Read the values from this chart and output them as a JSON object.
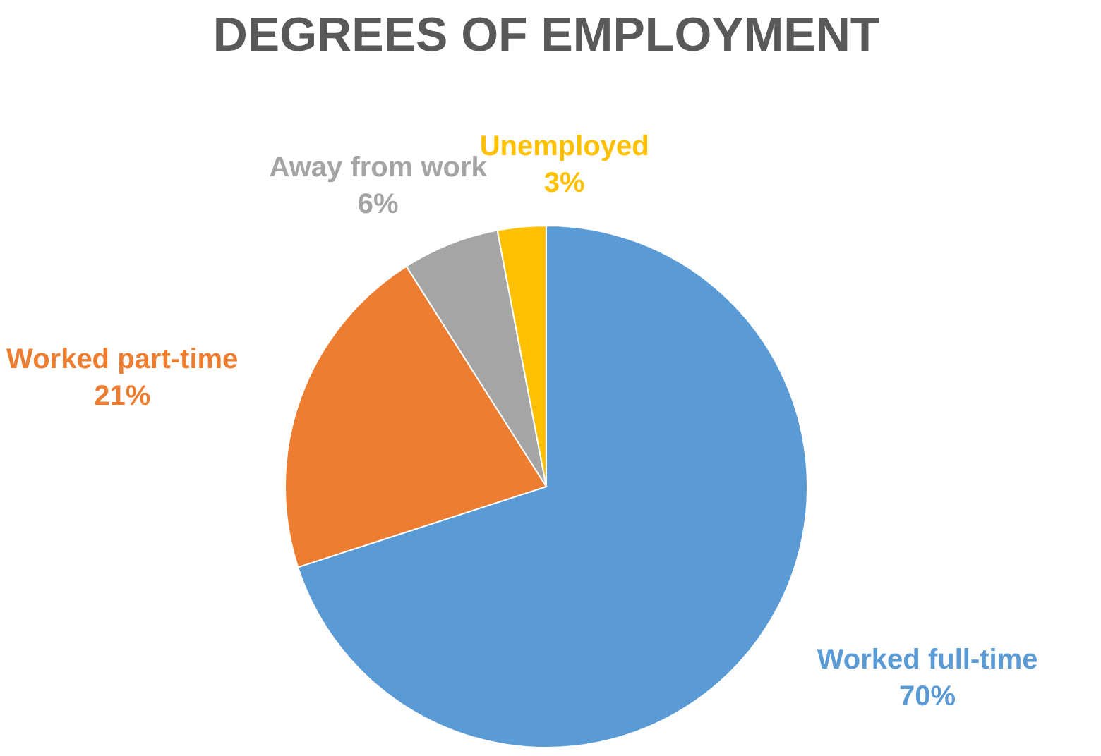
{
  "chart_data": {
    "type": "pie",
    "title": "DEGREES OF EMPLOYMENT",
    "categories": [
      "Worked full-time",
      "Worked part-time",
      "Away from work",
      "Unemployed"
    ],
    "values": [
      70,
      21,
      6,
      3
    ],
    "value_labels": [
      "70%",
      "21%",
      "6%",
      "3%"
    ],
    "colors": [
      "#5b9bd5",
      "#ed7d31",
      "#a5a5a5",
      "#ffc000"
    ]
  }
}
